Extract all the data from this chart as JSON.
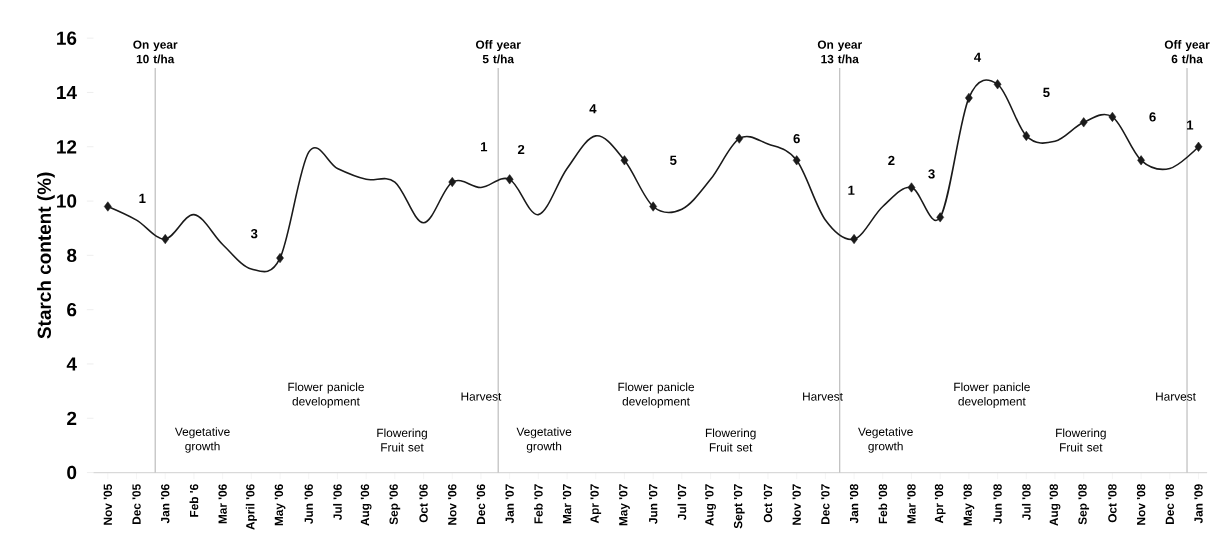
{
  "chart_data": {
    "type": "line",
    "ylabel": "Starch content (%)",
    "categories": [
      "Nov '05",
      "Dec '05",
      "Jan '06",
      "Feb '6",
      "Mar '06",
      "April '06",
      "May '06",
      "Jun '06",
      "Jul '06",
      "Aug '06",
      "Sep '06",
      "Oct '06",
      "Nov '06",
      "Dec '06",
      "Jan '07",
      "Feb '07",
      "Mar '07",
      "Apr '07",
      "May '07",
      "Jun '07",
      "Jul '07",
      "Aug '07",
      "Sept '07",
      "Oct '07",
      "Nov '07",
      "Dec '07",
      "Jan '08",
      "Feb '08",
      "Mar '08",
      "Apr '08",
      "May '08",
      "Jun '08",
      "Jul '08",
      "Aug '08",
      "Sep '08",
      "Oct '08",
      "Nov '08",
      "Dec '08",
      "Jan '09"
    ],
    "ylim": [
      0,
      16
    ],
    "yticks": [
      0,
      2,
      4,
      6,
      8,
      10,
      12,
      14,
      16
    ],
    "series": [
      {
        "type": "line",
        "color": "#1a1a1a",
        "marker": "none",
        "line_style": "solid",
        "values": [
          9.8,
          9.3,
          8.6,
          9.5,
          8.4,
          7.5,
          7.9,
          11.8,
          11.2,
          10.8,
          10.7,
          9.2,
          10.7,
          10.5,
          10.8,
          9.5,
          11.2,
          12.4,
          11.5,
          9.8,
          9.7,
          10.8,
          12.3,
          12.1,
          11.5,
          9.3,
          8.6,
          9.8,
          10.5,
          9.4,
          13.8,
          14.3,
          12.4,
          12.2,
          12.9,
          13.1,
          11.5,
          11.2,
          12.0
        ]
      },
      {
        "type": "scatter",
        "color": "#1a1a1a",
        "marker": "diamond",
        "values": [
          9.8,
          null,
          8.6,
          null,
          null,
          null,
          7.9,
          null,
          null,
          null,
          null,
          null,
          10.7,
          null,
          10.8,
          null,
          null,
          null,
          11.5,
          9.8,
          null,
          null,
          12.3,
          null,
          11.5,
          null,
          8.6,
          null,
          10.5,
          9.4,
          13.8,
          14.3,
          12.4,
          null,
          12.9,
          13.1,
          11.5,
          null,
          12.0
        ]
      }
    ],
    "annotations": [
      "On year 10 t/ha",
      "Off year 5 t/ha",
      "On year 13 t/ha",
      "Off year 6 t/ha",
      "1",
      "3",
      "1",
      "2",
      "4",
      "5",
      "6",
      "1",
      "2",
      "3",
      "4",
      "5",
      "6",
      "1",
      "Vegetative growth",
      "Flower panicle development",
      "Flowering Fruit set",
      "Harvest",
      "Vegetative growth",
      "Flower panicle development",
      "Flowering Fruit set",
      "Harvest",
      "Vegetative growth",
      "Flower panicle development",
      "Flowering Fruit set",
      "Harvest"
    ]
  }
}
